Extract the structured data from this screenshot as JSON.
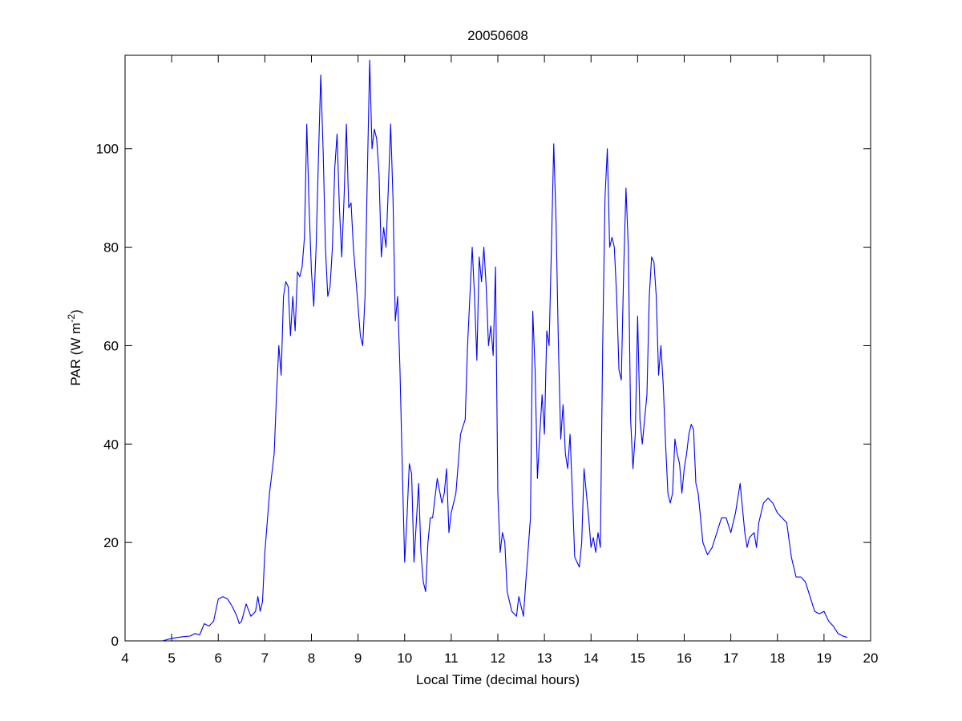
{
  "chart_data": {
    "type": "line",
    "title": "20050608",
    "x_label": "Local Time (decimal hours)",
    "y_label": {
      "text": "PAR (W m",
      "superscript": "-2",
      "suffix": ")"
    },
    "color": "#0000ff",
    "xlim": [
      4,
      20
    ],
    "xticks": [
      4,
      5,
      6,
      7,
      8,
      9,
      10,
      11,
      12,
      13,
      14,
      15,
      16,
      17,
      18,
      19,
      20
    ],
    "ylim": [
      0,
      119
    ],
    "yticks": [
      0,
      20,
      40,
      60,
      80,
      100
    ],
    "x": [
      4.8,
      5.0,
      5.2,
      5.4,
      5.5,
      5.6,
      5.7,
      5.8,
      5.9,
      6.0,
      6.1,
      6.2,
      6.3,
      6.4,
      6.45,
      6.5,
      6.6,
      6.7,
      6.8,
      6.85,
      6.9,
      6.95,
      7.0,
      7.1,
      7.2,
      7.25,
      7.3,
      7.35,
      7.4,
      7.45,
      7.5,
      7.55,
      7.6,
      7.65,
      7.7,
      7.75,
      7.8,
      7.85,
      7.9,
      7.95,
      8.0,
      8.05,
      8.1,
      8.15,
      8.2,
      8.25,
      8.3,
      8.35,
      8.4,
      8.45,
      8.5,
      8.55,
      8.6,
      8.65,
      8.7,
      8.75,
      8.8,
      8.85,
      8.9,
      9.0,
      9.05,
      9.1,
      9.15,
      9.2,
      9.25,
      9.3,
      9.35,
      9.4,
      9.45,
      9.5,
      9.55,
      9.6,
      9.65,
      9.7,
      9.75,
      9.8,
      9.85,
      9.9,
      9.95,
      10.0,
      10.05,
      10.1,
      10.15,
      10.2,
      10.3,
      10.35,
      10.4,
      10.45,
      10.5,
      10.55,
      10.6,
      10.7,
      10.8,
      10.85,
      10.9,
      10.95,
      11.0,
      11.1,
      11.2,
      11.3,
      11.35,
      11.4,
      11.45,
      11.5,
      11.55,
      11.6,
      11.65,
      11.7,
      11.75,
      11.8,
      11.85,
      11.9,
      11.95,
      12.0,
      12.05,
      12.1,
      12.15,
      12.2,
      12.25,
      12.3,
      12.4,
      12.45,
      12.5,
      12.55,
      12.6,
      12.7,
      12.75,
      12.8,
      12.85,
      12.9,
      12.95,
      13.0,
      13.05,
      13.1,
      13.15,
      13.2,
      13.25,
      13.3,
      13.35,
      13.4,
      13.45,
      13.5,
      13.55,
      13.6,
      13.65,
      13.7,
      13.75,
      13.8,
      13.85,
      13.9,
      13.95,
      14.0,
      14.05,
      14.1,
      14.15,
      14.2,
      14.25,
      14.3,
      14.35,
      14.4,
      14.45,
      14.5,
      14.55,
      14.6,
      14.65,
      14.7,
      14.75,
      14.8,
      14.85,
      14.9,
      14.95,
      15.0,
      15.05,
      15.1,
      15.15,
      15.2,
      15.25,
      15.3,
      15.35,
      15.4,
      15.45,
      15.5,
      15.55,
      15.6,
      15.65,
      15.7,
      15.75,
      15.8,
      15.85,
      15.9,
      15.95,
      16.0,
      16.05,
      16.1,
      16.15,
      16.2,
      16.25,
      16.3,
      16.4,
      16.5,
      16.6,
      16.7,
      16.8,
      16.9,
      17.0,
      17.1,
      17.2,
      17.3,
      17.35,
      17.4,
      17.5,
      17.55,
      17.6,
      17.7,
      17.8,
      17.9,
      18.0,
      18.1,
      18.2,
      18.3,
      18.4,
      18.5,
      18.6,
      18.7,
      18.8,
      18.9,
      19.0,
      19.1,
      19.2,
      19.3,
      19.4,
      19.5
    ],
    "values": [
      0,
      0.5,
      0.8,
      1,
      1.5,
      1.2,
      3.5,
      3,
      4,
      8.5,
      9,
      8.5,
      7,
      5,
      3.5,
      4,
      7.5,
      5,
      6,
      9,
      6,
      8,
      18,
      30,
      38,
      50,
      60,
      54,
      70,
      73,
      72,
      62,
      70,
      63,
      75,
      74,
      76,
      82,
      105,
      88,
      75,
      68,
      80,
      98,
      115,
      100,
      80,
      70,
      72,
      80,
      96,
      103,
      88,
      78,
      90,
      105,
      88,
      89,
      80,
      68,
      62,
      60,
      70,
      95,
      118,
      100,
      104,
      102,
      95,
      78,
      84,
      80,
      92,
      105,
      90,
      65,
      70,
      55,
      35,
      16,
      25,
      36,
      34,
      16,
      32,
      18,
      12,
      10,
      20,
      25,
      25,
      33,
      28,
      30,
      35,
      22,
      26,
      30,
      42,
      45,
      60,
      70,
      80,
      70,
      57,
      78,
      73,
      80,
      72,
      60,
      64,
      58,
      76,
      30,
      18,
      22,
      20,
      10,
      8,
      6,
      5,
      9,
      7,
      5,
      12,
      25,
      67,
      55,
      33,
      42,
      50,
      42,
      63,
      60,
      80,
      101,
      85,
      60,
      41,
      48,
      38,
      35,
      42,
      30,
      17,
      16,
      15,
      20,
      35,
      30,
      25,
      19,
      21,
      18,
      22,
      19,
      60,
      90,
      100,
      80,
      82,
      80,
      70,
      55,
      53,
      75,
      92,
      80,
      45,
      35,
      42,
      66,
      45,
      40,
      45,
      50,
      70,
      78,
      77,
      70,
      54,
      60,
      52,
      40,
      30,
      28,
      30,
      41,
      38,
      36,
      30,
      35,
      38,
      42,
      44,
      43,
      32,
      30,
      20,
      17.5,
      19,
      22,
      25,
      25,
      22,
      26,
      32,
      22,
      19,
      21,
      22,
      19,
      24,
      28,
      29,
      28,
      26,
      25,
      24,
      17,
      13,
      13,
      12,
      9,
      6,
      5.5,
      6,
      4,
      3,
      1.5,
      1,
      0.7
    ]
  }
}
